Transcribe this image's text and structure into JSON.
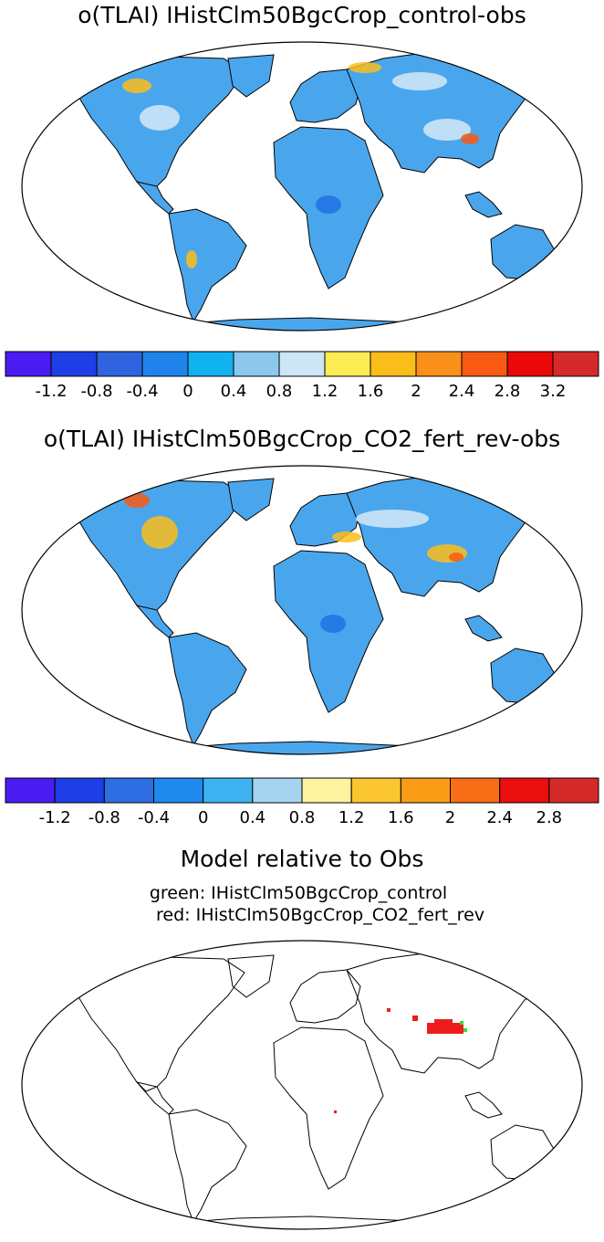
{
  "panels": [
    {
      "title": "o(TLAI) IHistClm50BgcCrop_control-obs",
      "colorbar": {
        "colors": [
          "#4a1cf2",
          "#1e3fe6",
          "#2e64e0",
          "#1e84ec",
          "#10b2f2",
          "#8cc8ee",
          "#cce6f8",
          "#fbec52",
          "#fbbd1a",
          "#f9901a",
          "#f95a12",
          "#ea0808",
          "#d42a2a"
        ],
        "tick_labels": [
          "-1.2",
          "-0.8",
          "-0.4",
          "0",
          "0.4",
          "0.8",
          "1.2",
          "1.6",
          "2",
          "2.4",
          "2.8",
          "3.2"
        ]
      }
    },
    {
      "title": "o(TLAI) IHistClm50BgcCrop_CO2_fert_rev-obs",
      "colorbar": {
        "colors": [
          "#4a1cf2",
          "#1e3fe6",
          "#2e6ee2",
          "#1e8aee",
          "#3eb2f0",
          "#a6d4f0",
          "#fcf2a0",
          "#fbc630",
          "#fa9c16",
          "#f86e16",
          "#ea1010",
          "#d42a2a"
        ],
        "tick_labels": [
          "-1.2",
          "-0.8",
          "-0.4",
          "0",
          "0.4",
          "0.8",
          "1.2",
          "1.6",
          "2",
          "2.4",
          "2.8"
        ]
      }
    }
  ],
  "bottom_panel": {
    "title": "Model relative to Obs",
    "legend_green": "green: IHistClm50BgcCrop_control",
    "legend_red": "red: IHistClm50BgcCrop_CO2_fert_rev",
    "colors": {
      "green": "#2ee02e",
      "red": "#ee1c1c"
    }
  },
  "colors": {
    "land_base": "#4aa6ec",
    "land_light": "#cce6f8",
    "land_dark": "#1e6ee4",
    "coastline": "#000000"
  }
}
